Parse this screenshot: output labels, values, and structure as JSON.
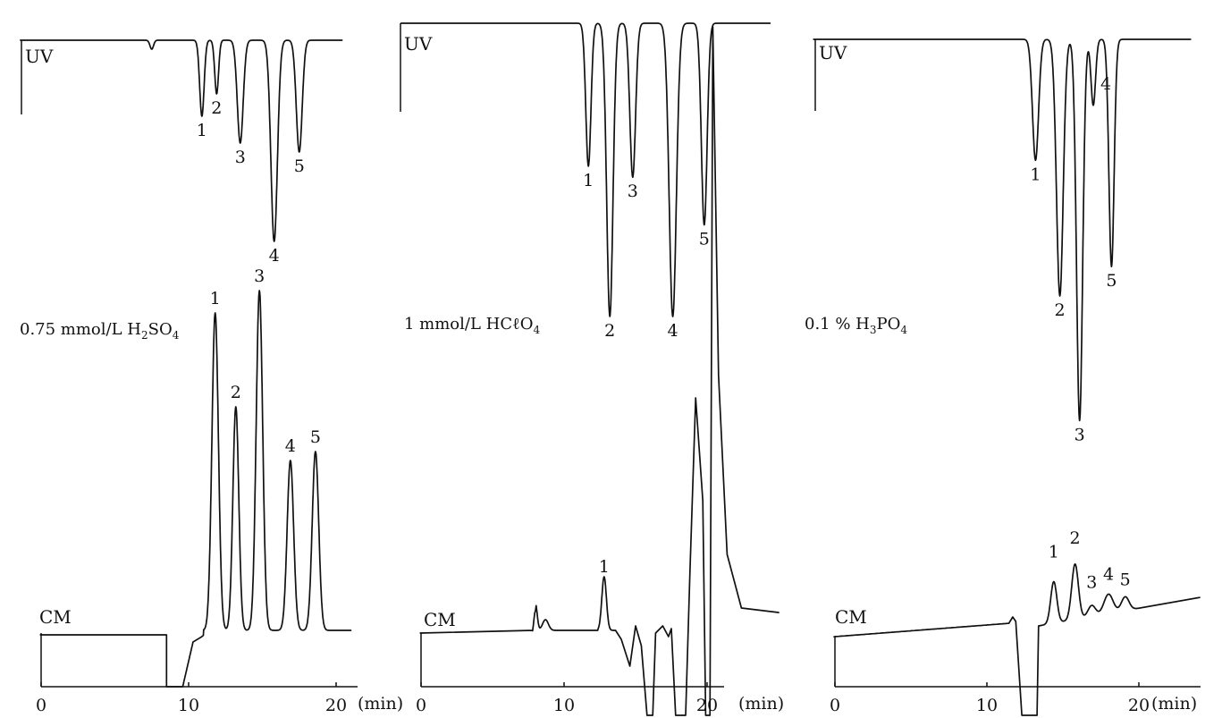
{
  "chart_data": [
    {
      "type": "line",
      "eluent": "0.75 mmol/L H₂SO₄",
      "eluent_parts": [
        "0.75 mmol/L H",
        "2",
        "SO",
        "4"
      ],
      "xlabel_unit": "(min)",
      "xlim": [
        0,
        21
      ],
      "x_ticks": [
        "0",
        "10",
        "20"
      ],
      "series": [
        {
          "detector": "UV",
          "direction": "down",
          "baseline_peaks": [
            {
              "x": 7.5,
              "h": 0.1,
              "w": 0.12,
              "hidden": true
            }
          ],
          "peaks": [
            {
              "label": "1",
              "x": 10.9,
              "h": 0.85,
              "w": 0.15
            },
            {
              "label": "2",
              "x": 11.9,
              "h": 0.6,
              "w": 0.13
            },
            {
              "label": "3",
              "x": 13.5,
              "h": 1.15,
              "w": 0.2
            },
            {
              "label": "4",
              "x": 15.8,
              "h": 2.25,
              "w": 0.22
            },
            {
              "label": "5",
              "x": 17.5,
              "h": 1.25,
              "w": 0.2
            }
          ]
        },
        {
          "detector": "CM",
          "direction": "up",
          "peaks": [
            {
              "label": "1",
              "x": 11.8,
              "h": 3.55,
              "w": 0.22
            },
            {
              "label": "2",
              "x": 13.2,
              "h": 2.5,
              "w": 0.2
            },
            {
              "label": "3",
              "x": 14.8,
              "h": 3.8,
              "w": 0.22
            },
            {
              "label": "4",
              "x": 16.9,
              "h": 1.9,
              "w": 0.22
            },
            {
              "label": "5",
              "x": 18.6,
              "h": 2.0,
              "w": 0.22
            }
          ]
        }
      ]
    },
    {
      "type": "line",
      "eluent": "1 mmol/L HCℓO₄",
      "eluent_parts": [
        "1 mmol/L HCℓO",
        "4"
      ],
      "xlabel_unit": "(min)",
      "xlim": [
        0,
        25
      ],
      "x_ticks": [
        "0",
        "10",
        "20"
      ],
      "series": [
        {
          "detector": "UV",
          "direction": "down",
          "peaks": [
            {
              "label": "1",
              "x": 11.7,
              "h": 1.95,
              "w": 0.18
            },
            {
              "label": "2",
              "x": 13.2,
              "h": 4.0,
              "w": 0.22
            },
            {
              "label": "3",
              "x": 14.8,
              "h": 2.1,
              "w": 0.2
            },
            {
              "label": "4",
              "x": 17.6,
              "h": 4.0,
              "w": 0.25
            },
            {
              "label": "5",
              "x": 19.8,
              "h": 2.75,
              "w": 0.2
            }
          ]
        },
        {
          "detector": "CM",
          "direction": "up",
          "peaks": [
            {
              "label": "1",
              "x": 12.8,
              "h": 0.6,
              "w": 0.16
            }
          ]
        }
      ]
    },
    {
      "type": "line",
      "eluent": "0.1 % H₃PO₄",
      "eluent_parts": [
        "0.1 % H",
        "3",
        "PO",
        "4"
      ],
      "xlabel_unit": "(min)",
      "xlim": [
        0,
        24
      ],
      "x_ticks": [
        "0",
        "10",
        "20"
      ],
      "series": [
        {
          "detector": "UV",
          "direction": "down",
          "peaks": [
            {
              "label": "1",
              "x": 13.2,
              "h": 1.65,
              "w": 0.2
            },
            {
              "label": "2",
              "x": 14.8,
              "h": 3.5,
              "w": 0.22
            },
            {
              "label": "3",
              "x": 16.1,
              "h": 5.2,
              "w": 0.2
            },
            {
              "label": "4",
              "x": 17.0,
              "h": 0.9,
              "w": 0.15
            },
            {
              "label": "5",
              "x": 18.2,
              "h": 3.1,
              "w": 0.17
            }
          ]
        },
        {
          "detector": "CM",
          "direction": "up",
          "peaks": [
            {
              "label": "1",
              "x": 14.4,
              "h": 0.75,
              "w": 0.2
            },
            {
              "label": "2",
              "x": 15.8,
              "h": 1.0,
              "w": 0.22
            },
            {
              "label": "3",
              "x": 16.9,
              "h": 0.2,
              "w": 0.25
            },
            {
              "label": "4",
              "x": 18.0,
              "h": 0.35,
              "w": 0.3
            },
            {
              "label": "5",
              "x": 19.1,
              "h": 0.25,
              "w": 0.25
            }
          ]
        }
      ]
    }
  ]
}
